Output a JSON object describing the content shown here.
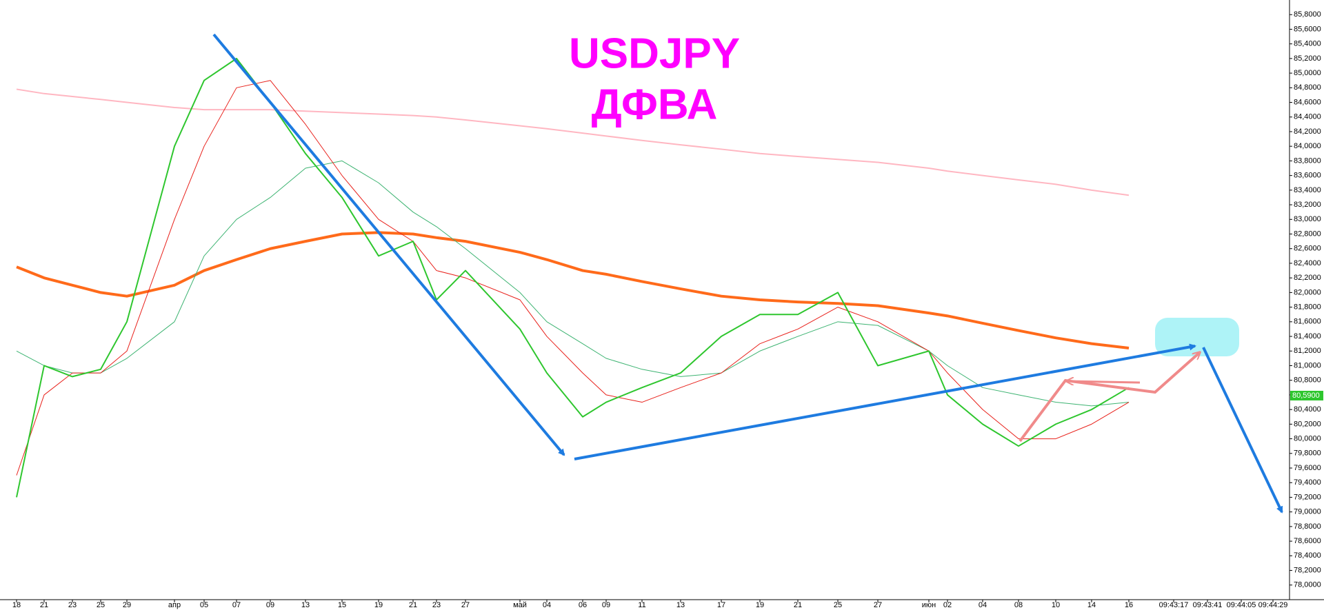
{
  "chart_data": {
    "type": "line",
    "title": "USDJPY",
    "subtitle": "ДФВА",
    "categories": [
      "18",
      "21",
      "23",
      "25",
      "29",
      "апр",
      "05",
      "07",
      "09",
      "13",
      "15",
      "19",
      "21",
      "23",
      "27",
      "май",
      "04",
      "06",
      "09",
      "11",
      "13",
      "17",
      "19",
      "21",
      "25",
      "27",
      "июн",
      "02",
      "04",
      "08",
      "10",
      "14",
      "16",
      "09:43:17",
      "09:43:41",
      "09:44:05",
      "09:44:29"
    ],
    "series": [
      {
        "color": "#ffb6c1",
        "values": [
          84.78,
          84.72,
          84.68,
          84.64,
          84.6,
          84.53,
          84.5,
          84.5,
          84.5,
          84.48,
          84.46,
          84.44,
          84.42,
          84.4,
          84.36,
          84.28,
          84.24,
          84.18,
          84.14,
          84.08,
          84.02,
          83.96,
          83.9,
          83.86,
          83.82,
          83.78,
          83.7,
          83.66,
          83.6,
          83.54,
          83.48,
          83.4,
          83.33,
          null,
          null,
          null,
          null
        ]
      },
      {
        "color": "#ff6a1a",
        "values": [
          82.35,
          82.2,
          82.1,
          82.0,
          81.95,
          82.1,
          82.3,
          82.45,
          82.6,
          82.7,
          82.8,
          82.82,
          82.8,
          82.75,
          82.7,
          82.55,
          82.45,
          82.3,
          82.25,
          82.15,
          82.05,
          81.95,
          81.9,
          81.87,
          81.85,
          81.82,
          81.72,
          81.68,
          81.58,
          81.48,
          81.38,
          81.3,
          81.24,
          null,
          null,
          null,
          null
        ]
      },
      {
        "color": "#3cb371",
        "values": [
          81.2,
          81.0,
          80.9,
          80.9,
          81.1,
          81.6,
          82.5,
          83.0,
          83.3,
          83.7,
          83.8,
          83.5,
          83.1,
          82.9,
          82.6,
          82.0,
          81.6,
          81.3,
          81.1,
          80.95,
          80.85,
          80.9,
          81.2,
          81.4,
          81.6,
          81.55,
          81.2,
          81.0,
          80.7,
          80.6,
          80.5,
          80.45,
          80.5,
          null,
          null,
          null,
          null
        ]
      },
      {
        "color": "#e8201a",
        "values": [
          79.5,
          80.6,
          80.9,
          80.9,
          81.2,
          83.0,
          84.0,
          84.8,
          84.9,
          84.3,
          83.6,
          83.0,
          82.7,
          82.3,
          82.2,
          81.9,
          81.4,
          80.9,
          80.6,
          80.5,
          80.7,
          80.9,
          81.3,
          81.5,
          81.8,
          81.6,
          81.2,
          80.9,
          80.4,
          80.0,
          80.0,
          80.2,
          80.5,
          null,
          null,
          null,
          null
        ]
      },
      {
        "color": "#2ec62e",
        "values": [
          79.2,
          81.0,
          80.85,
          80.95,
          81.6,
          84.0,
          84.9,
          85.2,
          84.6,
          83.9,
          83.3,
          82.5,
          82.7,
          81.9,
          82.3,
          81.5,
          80.9,
          80.3,
          80.5,
          80.7,
          80.9,
          81.4,
          81.7,
          81.7,
          82.0,
          81.0,
          81.2,
          80.6,
          80.2,
          79.9,
          80.2,
          80.4,
          80.7,
          null,
          null,
          null,
          null
        ]
      }
    ],
    "price_tag": {
      "value": 80.59,
      "label": "80,5900",
      "color": "#2ec62e"
    },
    "ylim": [
      77.8,
      86.0
    ],
    "yticks": [
      {
        "value": 78.0,
        "label": "78,0000"
      },
      {
        "value": 78.2,
        "label": "78,2000"
      },
      {
        "value": 78.4,
        "label": "78,4000"
      },
      {
        "value": 78.6,
        "label": "78,6000"
      },
      {
        "value": 78.8,
        "label": "78,8000"
      },
      {
        "value": 79.0,
        "label": "79,0000"
      },
      {
        "value": 79.2,
        "label": "79,2000"
      },
      {
        "value": 79.4,
        "label": "79,4000"
      },
      {
        "value": 79.6,
        "label": "79,6000"
      },
      {
        "value": 79.8,
        "label": "79,8000"
      },
      {
        "value": 80.0,
        "label": "80,0000"
      },
      {
        "value": 80.2,
        "label": "80,2000"
      },
      {
        "value": 80.4,
        "label": "80,4000"
      },
      {
        "value": 80.6,
        "label": "80,6000"
      },
      {
        "value": 80.8,
        "label": "80,8000"
      },
      {
        "value": 81.0,
        "label": "81,0000"
      },
      {
        "value": 81.2,
        "label": "81,2000"
      },
      {
        "value": 81.4,
        "label": "81,4000"
      },
      {
        "value": 81.6,
        "label": "81,6000"
      },
      {
        "value": 81.8,
        "label": "81,8000"
      },
      {
        "value": 82.0,
        "label": "82,0000"
      },
      {
        "value": 82.2,
        "label": "82,2000"
      },
      {
        "value": 82.4,
        "label": "82,4000"
      },
      {
        "value": 82.6,
        "label": "82,6000"
      },
      {
        "value": 82.8,
        "label": "82,8000"
      },
      {
        "value": 83.0,
        "label": "83,0000"
      },
      {
        "value": 83.2,
        "label": "83,2000"
      },
      {
        "value": 83.4,
        "label": "83,4000"
      },
      {
        "value": 83.6,
        "label": "83,6000"
      },
      {
        "value": 83.8,
        "label": "83,8000"
      },
      {
        "value": 84.0,
        "label": "84,0000"
      },
      {
        "value": 84.2,
        "label": "84,2000"
      },
      {
        "value": 84.4,
        "label": "84,4000"
      },
      {
        "value": 84.6,
        "label": "84,6000"
      },
      {
        "value": 84.8,
        "label": "84,8000"
      },
      {
        "value": 85.0,
        "label": "85,0000"
      },
      {
        "value": 85.2,
        "label": "85,2000"
      },
      {
        "value": 85.4,
        "label": "85,4000"
      },
      {
        "value": 85.6,
        "label": "85,6000"
      },
      {
        "value": 85.8,
        "label": "85,8000"
      }
    ],
    "grid": false
  }
}
